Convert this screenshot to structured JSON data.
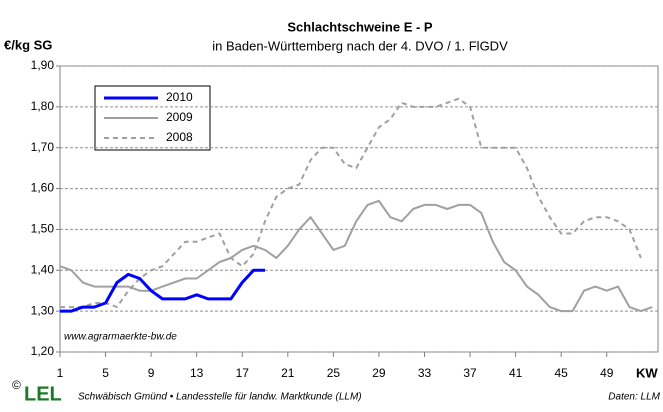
{
  "chart_data": {
    "type": "line",
    "title": "Schlachtschweine E - P",
    "subtitle": "in Baden-Württemberg nach der 4. DVO / 1. FlGDV",
    "y_label": "€/kg SG",
    "x_label": "KW",
    "annotation": "www.agrarmaerkte-bw.de",
    "footer": "Schwäbisch Gmünd • Landesstelle für landw. Marktkunde (LLM)",
    "source": "Daten: LLM",
    "logo_copyright": "©",
    "logo": "LEL",
    "xlim": [
      1,
      53.5
    ],
    "xticks": [
      1,
      5,
      9,
      13,
      17,
      21,
      25,
      29,
      33,
      37,
      41,
      45,
      49
    ],
    "ylim": [
      1.2,
      1.9
    ],
    "yticks": [
      {
        "value": 1.2,
        "label": "1,20"
      },
      {
        "value": 1.3,
        "label": "1,30"
      },
      {
        "value": 1.4,
        "label": "1,40"
      },
      {
        "value": 1.5,
        "label": "1,50"
      },
      {
        "value": 1.6,
        "label": "1,60"
      },
      {
        "value": 1.7,
        "label": "1,70"
      },
      {
        "value": 1.8,
        "label": "1,80"
      },
      {
        "value": 1.9,
        "label": "1,90"
      }
    ],
    "grid": true,
    "legend": "upper left",
    "series": [
      {
        "name": "2010",
        "color": "#0000ff",
        "dash": false,
        "x": [
          1,
          2,
          3,
          4,
          5,
          6,
          7,
          8,
          9,
          10,
          11,
          12,
          13,
          14,
          15,
          16,
          17,
          18,
          19
        ],
        "values": [
          1.3,
          1.3,
          1.31,
          1.31,
          1.32,
          1.37,
          1.39,
          1.38,
          1.35,
          1.33,
          1.33,
          1.33,
          1.34,
          1.33,
          1.33,
          1.33,
          1.37,
          1.4,
          1.4
        ]
      },
      {
        "name": "2009",
        "color": "#a0a0a0",
        "dash": false,
        "x": [
          1,
          2,
          3,
          4,
          5,
          6,
          7,
          8,
          9,
          10,
          11,
          12,
          13,
          14,
          15,
          16,
          17,
          18,
          19,
          20,
          21,
          22,
          23,
          24,
          25,
          26,
          27,
          28,
          29,
          30,
          31,
          32,
          33,
          34,
          35,
          36,
          37,
          38,
          39,
          40,
          41,
          42,
          43,
          44,
          45,
          46,
          47,
          48,
          49,
          50,
          51,
          52,
          53
        ],
        "values": [
          1.41,
          1.4,
          1.37,
          1.36,
          1.36,
          1.36,
          1.36,
          1.35,
          1.35,
          1.36,
          1.37,
          1.38,
          1.38,
          1.4,
          1.42,
          1.43,
          1.45,
          1.46,
          1.45,
          1.43,
          1.46,
          1.5,
          1.53,
          1.49,
          1.45,
          1.46,
          1.52,
          1.56,
          1.57,
          1.53,
          1.52,
          1.55,
          1.56,
          1.56,
          1.55,
          1.56,
          1.56,
          1.54,
          1.47,
          1.42,
          1.4,
          1.36,
          1.34,
          1.31,
          1.3,
          1.3,
          1.35,
          1.36,
          1.35,
          1.36,
          1.31,
          1.3,
          1.31
        ]
      },
      {
        "name": "2008",
        "color": "#a0a0a0",
        "dash": true,
        "x": [
          1,
          2,
          3,
          4,
          5,
          6,
          7,
          8,
          9,
          10,
          11,
          12,
          13,
          14,
          15,
          16,
          17,
          18,
          19,
          20,
          21,
          22,
          23,
          24,
          25,
          26,
          27,
          28,
          29,
          30,
          31,
          32,
          33,
          34,
          35,
          36,
          37,
          38,
          39,
          40,
          41,
          42,
          43,
          44,
          45,
          46,
          47,
          48,
          49,
          50,
          51,
          52
        ],
        "values": [
          1.31,
          1.31,
          1.31,
          1.32,
          1.32,
          1.31,
          1.35,
          1.38,
          1.4,
          1.41,
          1.44,
          1.47,
          1.47,
          1.48,
          1.49,
          1.43,
          1.41,
          1.44,
          1.52,
          1.58,
          1.6,
          1.61,
          1.67,
          1.7,
          1.7,
          1.66,
          1.65,
          1.7,
          1.75,
          1.77,
          1.81,
          1.8,
          1.8,
          1.8,
          1.81,
          1.82,
          1.8,
          1.7,
          1.7,
          1.7,
          1.7,
          1.65,
          1.58,
          1.53,
          1.49,
          1.49,
          1.52,
          1.53,
          1.53,
          1.52,
          1.5,
          1.43
        ]
      }
    ]
  }
}
